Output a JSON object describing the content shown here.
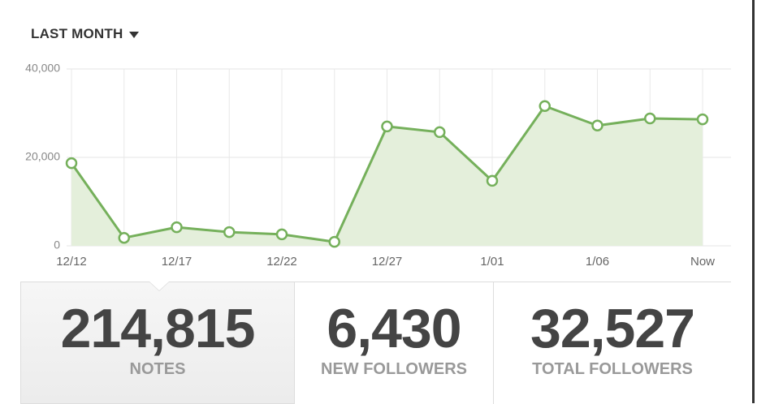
{
  "dropdown": {
    "label": "LAST MONTH"
  },
  "chart_data": {
    "type": "line",
    "categories": [
      "12/12",
      null,
      "12/17",
      null,
      "12/22",
      null,
      "12/27",
      null,
      "1/01",
      null,
      "1/06",
      null,
      "Now"
    ],
    "values": [
      18700,
      1800,
      4200,
      3100,
      2600,
      900,
      27000,
      25700,
      14700,
      31600,
      27200,
      28800,
      28600
    ],
    "color": "#75b05b",
    "fill": "#e4efdb",
    "ylim": [
      0,
      40000
    ],
    "yticks": [
      0,
      {
        "value": 20000,
        "label": "20,000"
      },
      {
        "value": 40000,
        "label": "40,000"
      }
    ],
    "grid": true
  },
  "stats": [
    {
      "value": "214,815",
      "label": "NOTES"
    },
    {
      "value": "6,430",
      "label": "NEW FOLLOWERS"
    },
    {
      "value": "32,527",
      "label": "TOTAL FOLLOWERS"
    }
  ]
}
